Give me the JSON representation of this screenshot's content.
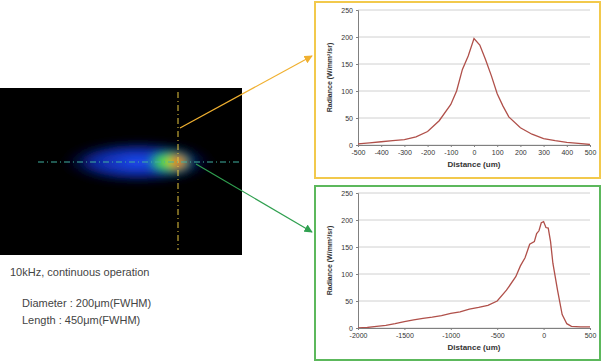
{
  "chart_data": [
    {
      "type": "line",
      "x_label": "Distance (um)",
      "y_label": "Radiance (W/mm²/sr)",
      "x": [
        -500,
        -450,
        -400,
        -350,
        -300,
        -250,
        -200,
        -150,
        -100,
        -75,
        -50,
        -25,
        0,
        25,
        50,
        75,
        100,
        125,
        150,
        200,
        250,
        300,
        350,
        400,
        450,
        500
      ],
      "values": [
        2,
        4,
        6,
        8,
        10,
        15,
        25,
        45,
        75,
        100,
        140,
        165,
        197,
        185,
        158,
        128,
        95,
        72,
        52,
        32,
        20,
        12,
        8,
        5,
        3,
        1
      ],
      "color": "#b0504a",
      "xlim": [
        -500,
        500
      ],
      "xticks": [
        -500,
        -400,
        -300,
        -200,
        -100,
        0,
        100,
        200,
        300,
        400,
        500
      ],
      "ylim": [
        0,
        250
      ],
      "yticks": [
        0,
        50,
        100,
        150,
        200,
        250
      ],
      "grid": true
    },
    {
      "type": "line",
      "x_label": "Distance (um)",
      "y_label": "Radiance (W/mm²/sr)",
      "x": [
        -2000,
        -1900,
        -1800,
        -1700,
        -1600,
        -1500,
        -1400,
        -1300,
        -1200,
        -1100,
        -1000,
        -900,
        -800,
        -700,
        -600,
        -500,
        -400,
        -300,
        -250,
        -200,
        -150,
        -100,
        -75,
        -50,
        -25,
        0,
        25,
        50,
        75,
        100,
        150,
        200,
        250,
        300,
        400,
        500
      ],
      "values": [
        0,
        1,
        3,
        5,
        8,
        12,
        15,
        18,
        20,
        23,
        27,
        30,
        35,
        38,
        42,
        50,
        70,
        95,
        115,
        130,
        155,
        160,
        175,
        180,
        195,
        197,
        186,
        185,
        160,
        120,
        70,
        25,
        8,
        3,
        2,
        2
      ],
      "color": "#b0504a",
      "xlim": [
        -2000,
        500
      ],
      "xticks": [
        -2000,
        -1500,
        -1000,
        -500,
        0,
        500
      ],
      "ylim": [
        0,
        250
      ],
      "yticks": [
        0,
        50,
        100,
        150,
        200,
        250
      ],
      "grid": true
    }
  ],
  "caption": [
    "10kHz, continuous operation",
    "Diameter : 200μm(FWHM)",
    "Length : 450μm(FWHM)"
  ]
}
